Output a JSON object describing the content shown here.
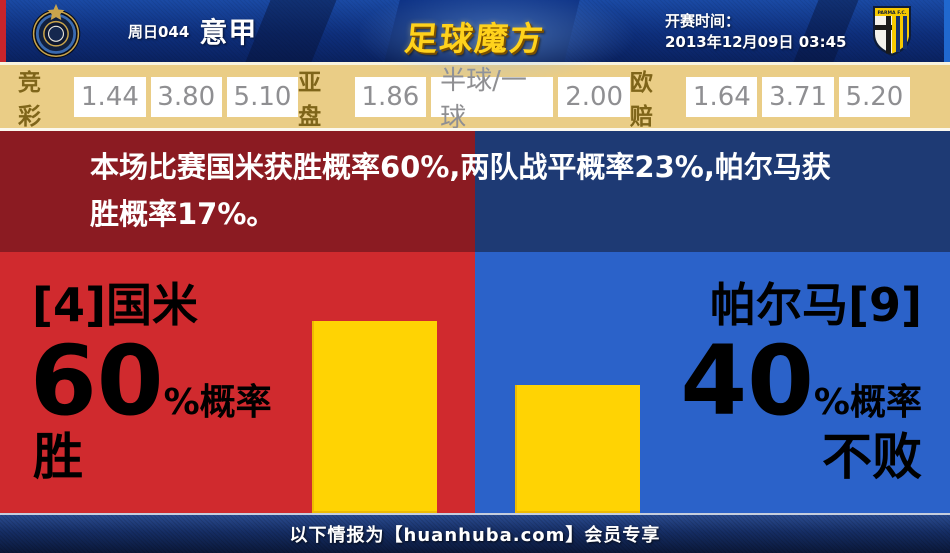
{
  "header": {
    "match_code": "周日044",
    "league": "意甲",
    "brand": "足球魔方",
    "kickoff_label": "开赛时间：",
    "kickoff_time": "2013年12月09日 03:45",
    "away_crest_text": "PARMA F.C."
  },
  "odds": {
    "jingcai": {
      "label": "竞彩",
      "values": [
        "1.44",
        "3.80",
        "5.10"
      ]
    },
    "yapan": {
      "label": "亚盘",
      "values": [
        "1.86",
        "半球/一球",
        "2.00"
      ]
    },
    "oupei": {
      "label": "欧赔",
      "values": [
        "1.64",
        "3.71",
        "5.20"
      ]
    }
  },
  "summary": {
    "text": "本场比赛国米获胜概率60%,两队战平概率23%,帕尔马获胜概率17%。",
    "line1": "本场比赛国米获胜概率60%,两队战平概率23%,帕尔马获",
    "line2": "胜概率17%。"
  },
  "home": {
    "name": "[4]国米",
    "probability": "60",
    "suffix": "%概率",
    "outcome": "胜",
    "prob_value": 60
  },
  "away": {
    "name": "帕尔马[9]",
    "probability": "40",
    "suffix": "%概率",
    "outcome": "不败",
    "prob_value": 40
  },
  "footer": {
    "text": "以下情报为【huanhuba.com】会员专享"
  },
  "colors": {
    "home_red": "#d02a2e",
    "home_dark_red": "#8b1b22",
    "away_blue": "#2b62c9",
    "away_dark_blue": "#1e3a74",
    "bar_yellow": "#ffd303",
    "odds_bg": "#eacd86",
    "brand_gold": "#ffd21c"
  }
}
